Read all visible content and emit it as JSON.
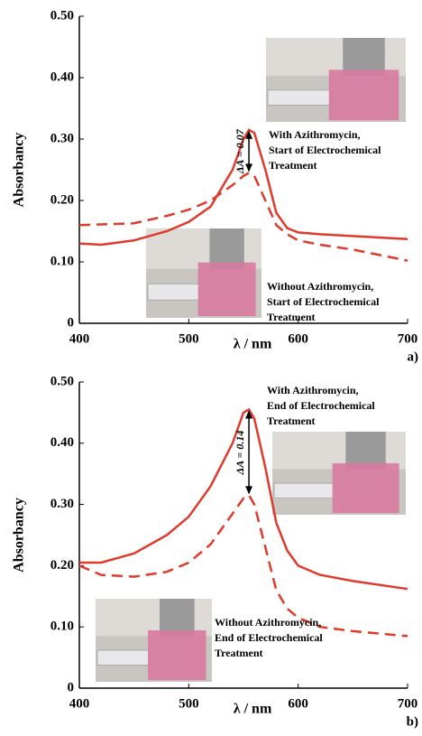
{
  "chart_data": [
    {
      "type": "line",
      "panel_label": "a)",
      "xlabel": "λ / nm",
      "ylabel": "Absorbancy",
      "x": [
        400,
        420,
        450,
        480,
        500,
        520,
        540,
        550,
        555,
        560,
        570,
        580,
        590,
        600,
        620,
        650,
        700
      ],
      "series": [
        {
          "color": "#e03a2c",
          "style": "solid",
          "values": [
            0.13,
            0.128,
            0.135,
            0.15,
            0.165,
            0.19,
            0.25,
            0.3,
            0.315,
            0.31,
            0.25,
            0.18,
            0.155,
            0.148,
            0.145,
            0.142,
            0.137
          ]
        },
        {
          "color": "#e03a2c",
          "style": "dashed",
          "values": [
            0.16,
            0.161,
            0.163,
            0.175,
            0.185,
            0.2,
            0.225,
            0.24,
            0.245,
            0.24,
            0.2,
            0.16,
            0.145,
            0.135,
            0.128,
            0.12,
            0.102
          ]
        }
      ],
      "xlim": [
        400,
        700
      ],
      "xticks": [
        400,
        500,
        600,
        700
      ],
      "ylim": [
        0,
        0.5
      ],
      "yticks": [
        0,
        {
          "value": 0.1,
          "label": "0.10"
        },
        {
          "value": 0.2,
          "label": "0.20"
        },
        {
          "value": 0.3,
          "label": "0.30"
        },
        {
          "value": 0.4,
          "label": "0.40"
        },
        {
          "value": 0.5,
          "label": "0.50"
        }
      ],
      "delta_label": "ΔA = 0.07",
      "annotations": [
        {
          "lines": [
            "With Azithromycin,",
            "Start of Electrochemical",
            "Treatment"
          ]
        },
        {
          "lines": [
            "Without Azithromycin,",
            "Start of Electrochemical",
            "Treatment"
          ]
        }
      ]
    },
    {
      "type": "line",
      "panel_label": "b)",
      "xlabel": "λ / nm",
      "ylabel": "Absorbancy",
      "x": [
        400,
        420,
        450,
        480,
        500,
        520,
        540,
        550,
        555,
        560,
        570,
        580,
        590,
        600,
        620,
        650,
        700
      ],
      "series": [
        {
          "color": "#e03a2c",
          "style": "solid",
          "values": [
            0.205,
            0.205,
            0.22,
            0.25,
            0.28,
            0.33,
            0.4,
            0.45,
            0.455,
            0.44,
            0.36,
            0.27,
            0.225,
            0.2,
            0.185,
            0.175,
            0.162
          ]
        },
        {
          "color": "#e03a2c",
          "style": "dashed",
          "values": [
            0.2,
            0.185,
            0.182,
            0.19,
            0.205,
            0.235,
            0.285,
            0.31,
            0.315,
            0.3,
            0.23,
            0.16,
            0.13,
            0.115,
            0.1,
            0.093,
            0.085
          ]
        }
      ],
      "xlim": [
        400,
        700
      ],
      "xticks": [
        400,
        500,
        600,
        700
      ],
      "ylim": [
        0,
        0.5
      ],
      "yticks": [
        0,
        {
          "value": 0.1,
          "label": "0.10"
        },
        {
          "value": 0.2,
          "label": "0.20"
        },
        {
          "value": 0.3,
          "label": "0.30"
        },
        {
          "value": 0.4,
          "label": "0.40"
        },
        {
          "value": 0.5,
          "label": "0.50"
        }
      ],
      "delta_label": "ΔA = 0.14",
      "annotations": [
        {
          "lines": [
            "With Azithromycin,",
            "End of Electrochemical",
            "Treatment"
          ]
        },
        {
          "lines": [
            "Without Azithromycin,",
            "End of Electrochemical",
            "Treatment"
          ]
        }
      ]
    }
  ]
}
